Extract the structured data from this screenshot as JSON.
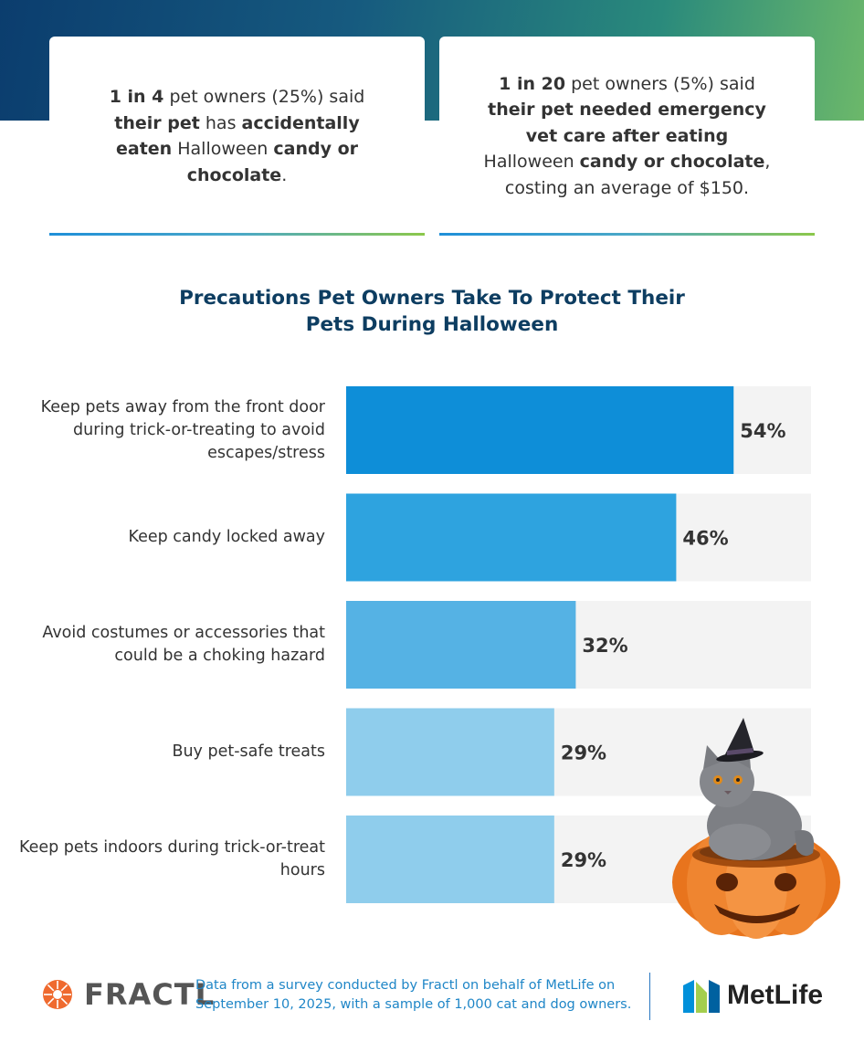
{
  "header": {
    "card1": {
      "parts": [
        {
          "b": true,
          "t": "1 in 4"
        },
        {
          "b": false,
          "t": " pet owners (25%) said "
        },
        {
          "b": true,
          "t": "their pet"
        },
        {
          "b": false,
          "t": " has "
        },
        {
          "b": true,
          "t": "accidentally eaten"
        },
        {
          "b": false,
          "t": " Halloween "
        },
        {
          "b": true,
          "t": "candy or chocolate"
        },
        {
          "b": false,
          "t": "."
        }
      ]
    },
    "card2": {
      "parts": [
        {
          "b": true,
          "t": "1 in 20"
        },
        {
          "b": false,
          "t": " pet owners (5%) said "
        },
        {
          "b": true,
          "t": "their pet needed emergency vet care after eating"
        },
        {
          "b": false,
          "t": " Halloween "
        },
        {
          "b": true,
          "t": "candy or chocolate"
        },
        {
          "b": false,
          "t": ", costing an average of $150."
        }
      ]
    }
  },
  "chart_data": {
    "type": "bar",
    "orientation": "horizontal",
    "title": "Precautions Pet Owners Take To Protect Their Pets During Halloween",
    "categories": [
      "Keep pets away from the front door during trick-or-treating to avoid escapes/stress",
      "Keep candy locked away",
      "Avoid costumes or accessories that could be a choking hazard",
      "Buy pet-safe treats",
      "Keep pets indoors during trick-or-treat hours"
    ],
    "values": [
      54,
      46,
      32,
      29,
      29
    ],
    "value_labels": [
      "54%",
      "46%",
      "32%",
      "29%",
      "29%"
    ],
    "unit": "%",
    "xlim": [
      0,
      60
    ],
    "bar_colors": [
      "#0e8ed8",
      "#2ea3df",
      "#55b2e4",
      "#8fcdec",
      "#8fcdec"
    ],
    "track_color": "#f3f3f3"
  },
  "footer": {
    "fractl_name": "FRACTL",
    "note": "Data from a survey conducted by Fractl on behalf of MetLife on September 10, 2025, with a sample of 1,000 cat and dog owners.",
    "metlife_name": "MetLife"
  },
  "decor": {
    "illustration": "cat-in-witch-hat-in-pumpkin",
    "fractl_icon": "fractl-sunburst-icon",
    "metlife_icon": "metlife-m-icon"
  }
}
